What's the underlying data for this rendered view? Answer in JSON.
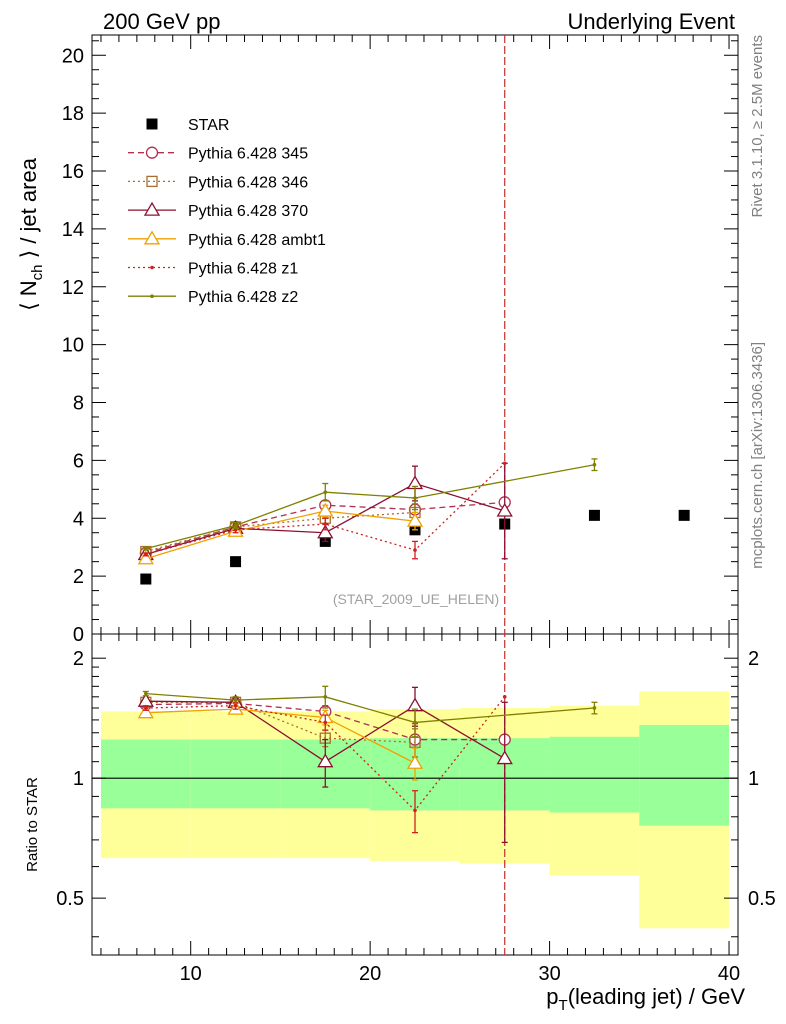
{
  "header": {
    "left_title": "200 GeV pp",
    "right_title": "Underlying Event",
    "side_label_top": "Rivet 3.1.10, ≥ 2.5M events",
    "side_label_bottom": "mcplots.cern.ch [arXiv:1306.3436]",
    "watermark": "(STAR_2009_UE_HELEN)"
  },
  "chart_data": [
    {
      "type": "scatter",
      "panel": "main",
      "ylabel_prefix": "⟨ N",
      "ylabel_sub": "ch",
      "ylabel_suffix": " ⟩ / jet area",
      "ylim": [
        0,
        20.7
      ],
      "yticks": [
        0,
        2,
        4,
        6,
        8,
        10,
        12,
        14,
        16,
        18,
        20
      ],
      "xlim": [
        4.5,
        40.5
      ],
      "vline_x": 27.5,
      "legend_position": "top-left",
      "series": [
        {
          "name": "STAR",
          "color": "#000000",
          "marker": "square",
          "style": "none",
          "x": [
            7.5,
            12.5,
            17.5,
            22.5,
            27.5,
            32.5,
            37.5
          ],
          "y": [
            1.9,
            2.5,
            3.2,
            3.6,
            3.8,
            4.1,
            4.1
          ],
          "err": [
            0,
            0,
            0,
            0,
            0,
            0,
            0
          ]
        },
        {
          "name": "Pythia 6.428 345",
          "color": "#b03050",
          "marker": "circle",
          "style": "dashed",
          "x": [
            7.5,
            12.5,
            17.5,
            22.5,
            27.5
          ],
          "y": [
            2.8,
            3.7,
            4.45,
            4.3,
            4.55
          ],
          "err": [
            0.05,
            0.1,
            0.15,
            0.4,
            0
          ]
        },
        {
          "name": "Pythia 6.428 346",
          "color": "#a87030",
          "marker": "square-open",
          "style": "dotted",
          "x": [
            7.5,
            12.5,
            17.5,
            22.5
          ],
          "y": [
            2.85,
            3.7,
            4.0,
            4.2
          ],
          "err": [
            0.05,
            0.1,
            0.2,
            0.3
          ]
        },
        {
          "name": "Pythia 6.428 370",
          "color": "#8b1030",
          "marker": "triangle",
          "style": "solid",
          "x": [
            7.5,
            12.5,
            17.5,
            22.5,
            27.5
          ],
          "y": [
            2.75,
            3.65,
            3.5,
            5.2,
            4.25
          ],
          "err": [
            0.05,
            0.1,
            0.3,
            0.6,
            1.65
          ]
        },
        {
          "name": "Pythia 6.428 ambt1",
          "color": "#f0a000",
          "marker": "triangle",
          "style": "solid",
          "x": [
            7.5,
            12.5,
            17.5,
            22.5
          ],
          "y": [
            2.6,
            3.55,
            4.25,
            3.9
          ],
          "err": [
            0.05,
            0.1,
            0.2,
            0.3
          ]
        },
        {
          "name": "Pythia 6.428 z1",
          "color": "#d02020",
          "marker": "dot",
          "style": "dotted",
          "x": [
            7.5,
            12.5,
            17.5,
            22.5,
            27.5
          ],
          "y": [
            2.75,
            3.6,
            3.8,
            2.9,
            5.9
          ],
          "err": [
            0.05,
            0.1,
            0.2,
            0.3,
            0
          ]
        },
        {
          "name": "Pythia 6.428 z2",
          "color": "#808000",
          "marker": "dot",
          "style": "solid",
          "x": [
            7.5,
            12.5,
            17.5,
            22.5,
            32.5
          ],
          "y": [
            2.95,
            3.75,
            4.9,
            4.7,
            5.85
          ],
          "err": [
            0.05,
            0.1,
            0.3,
            0.4,
            0.2
          ]
        }
      ]
    },
    {
      "type": "scatter",
      "panel": "ratio",
      "ylabel": "Ratio to STAR",
      "ylim": [
        0.36,
        2.3
      ],
      "yticks": [
        0.5,
        1,
        2
      ],
      "xlim": [
        4.5,
        40.5
      ],
      "xticks": [
        10,
        20,
        30,
        40
      ],
      "xlabel_prefix": "p",
      "xlabel_sub": "T",
      "xlabel_suffix": "(leading jet) / GeV",
      "reference_line": 1,
      "uncertainty_bands": [
        {
          "x0": 5,
          "x1": 10,
          "yellow": [
            0.63,
            1.47
          ],
          "green": [
            0.84,
            1.25
          ]
        },
        {
          "x0": 10,
          "x1": 15,
          "yellow": [
            0.63,
            1.47
          ],
          "green": [
            0.84,
            1.25
          ]
        },
        {
          "x0": 15,
          "x1": 20,
          "yellow": [
            0.63,
            1.47
          ],
          "green": [
            0.84,
            1.25
          ]
        },
        {
          "x0": 20,
          "x1": 25,
          "yellow": [
            0.62,
            1.49
          ],
          "green": [
            0.83,
            1.26
          ]
        },
        {
          "x0": 25,
          "x1": 30,
          "yellow": [
            0.61,
            1.5
          ],
          "green": [
            0.83,
            1.26
          ]
        },
        {
          "x0": 30,
          "x1": 35,
          "yellow": [
            0.57,
            1.52
          ],
          "green": [
            0.82,
            1.27
          ]
        },
        {
          "x0": 35,
          "x1": 40,
          "yellow": [
            0.42,
            1.65
          ],
          "green": [
            0.76,
            1.36
          ]
        }
      ],
      "series": [
        {
          "name": "Pythia 6.428 345",
          "color": "#b03050",
          "marker": "circle",
          "style": "dashed",
          "x": [
            7.5,
            12.5,
            17.5,
            22.5,
            27.5
          ],
          "y": [
            1.53,
            1.54,
            1.47,
            1.25,
            1.25
          ],
          "err": [
            0.02,
            0.03,
            0.05,
            0.12,
            0
          ]
        },
        {
          "name": "Pythia 6.428 346",
          "color": "#a87030",
          "marker": "square-open",
          "style": "dotted",
          "x": [
            7.5,
            12.5,
            17.5,
            22.5
          ],
          "y": [
            1.55,
            1.55,
            1.26,
            1.23
          ],
          "err": [
            0.02,
            0.03,
            0.06,
            0.1
          ]
        },
        {
          "name": "Pythia 6.428 370",
          "color": "#8b1030",
          "marker": "triangle",
          "style": "solid",
          "x": [
            7.5,
            12.5,
            17.5,
            22.5,
            27.5
          ],
          "y": [
            1.56,
            1.55,
            1.1,
            1.52,
            1.12
          ],
          "err": [
            0.02,
            0.03,
            0.15,
            0.17,
            0.43
          ]
        },
        {
          "name": "Pythia 6.428 ambt1",
          "color": "#f0a000",
          "marker": "triangle",
          "style": "solid",
          "x": [
            7.5,
            12.5,
            17.5,
            22.5
          ],
          "y": [
            1.46,
            1.49,
            1.42,
            1.09
          ],
          "err": [
            0.02,
            0.03,
            0.06,
            0.1
          ]
        },
        {
          "name": "Pythia 6.428 z1",
          "color": "#d02020",
          "marker": "dot",
          "style": "dotted",
          "x": [
            7.5,
            12.5,
            17.5,
            22.5,
            27.5
          ],
          "y": [
            1.5,
            1.52,
            1.38,
            0.83,
            1.6
          ],
          "err": [
            0.02,
            0.03,
            0.06,
            0.1,
            0
          ]
        },
        {
          "name": "Pythia 6.428 z2",
          "color": "#808000",
          "marker": "dot",
          "style": "solid",
          "x": [
            7.5,
            12.5,
            17.5,
            22.5,
            32.5
          ],
          "y": [
            1.63,
            1.57,
            1.6,
            1.38,
            1.5
          ],
          "err": [
            0.02,
            0.03,
            0.1,
            0.11,
            0.05
          ]
        }
      ]
    }
  ]
}
